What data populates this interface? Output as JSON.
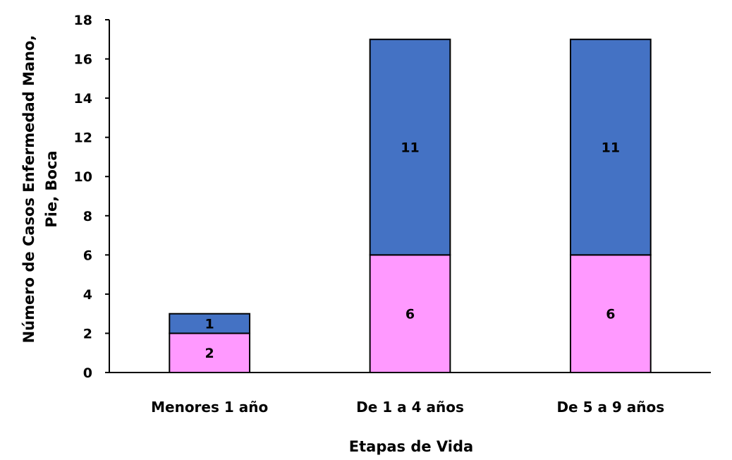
{
  "chart_data": {
    "type": "bar",
    "stacked": true,
    "categories": [
      "Menores 1 año",
      "De 1 a 4 años",
      "De 5 a 9 años"
    ],
    "series": [
      {
        "values": [
          2,
          6,
          6
        ],
        "color": "#FF99FF"
      },
      {
        "values": [
          1,
          11,
          11
        ],
        "color": "#4472C4"
      }
    ],
    "title": "",
    "xlabel": "Etapas de Vida",
    "ylabel_lines": [
      "Número de Casos Enfermedad Mano,",
      "Pie, Boca"
    ],
    "ylim": [
      0,
      18
    ],
    "yticks": [
      0,
      2,
      4,
      6,
      8,
      10,
      12,
      14,
      16,
      18
    ],
    "grid": false,
    "legend": "none"
  }
}
